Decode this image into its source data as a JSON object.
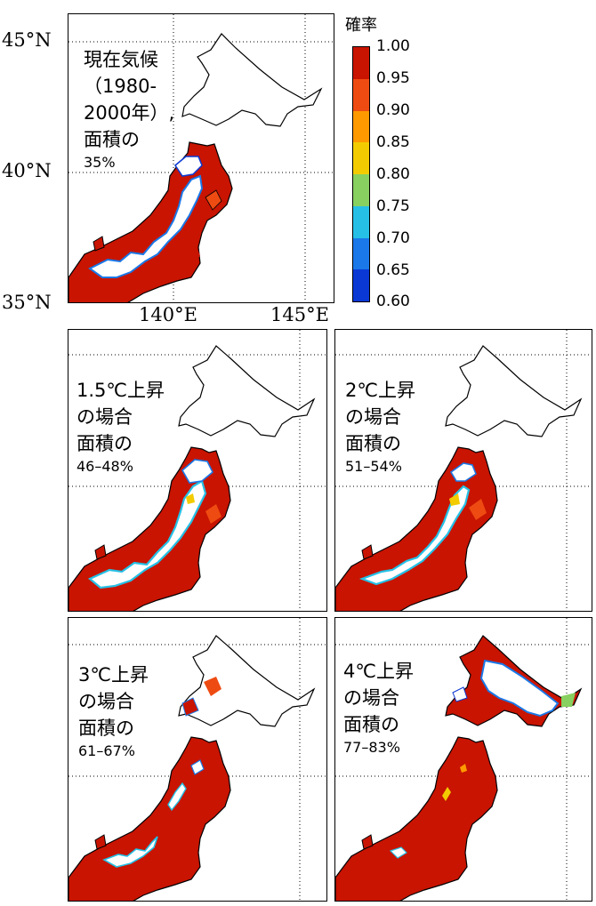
{
  "colorbar": {
    "title": "確率",
    "ticks": [
      "1.00",
      "0.95",
      "0.90",
      "0.85",
      "0.80",
      "0.75",
      "0.70",
      "0.65",
      "0.60"
    ],
    "colors": [
      "#c81400",
      "#ee4b12",
      "#ff9900",
      "#f2cc00",
      "#88d060",
      "#26c0e6",
      "#1a78e8",
      "#0a38d4",
      "#00008c"
    ]
  },
  "axes": {
    "lat_labels": [
      "45°N",
      "40°N",
      "35°N"
    ],
    "lon_labels": [
      "140°E",
      "145°E"
    ]
  },
  "panels": [
    {
      "id": "current",
      "line1": "現在気候",
      "line2": "（1980-",
      "line3": "2000年）,",
      "line4": "面積の",
      "pct": "35%"
    },
    {
      "id": "p15",
      "line1": "1.5℃上昇",
      "line2": "の場合",
      "line3": "面積の",
      "pct": "46–48%"
    },
    {
      "id": "p2",
      "line1": "2℃上昇",
      "line2": "の場合",
      "line3": "面積の",
      "pct": "51–54%"
    },
    {
      "id": "p3",
      "line1": "3℃上昇",
      "line2": "の場合",
      "line3": "面積の",
      "pct": "61–67%"
    },
    {
      "id": "p4",
      "line1": "4℃上昇",
      "line2": "の場合",
      "line3": "面積の",
      "pct": "77–83%"
    }
  ]
}
